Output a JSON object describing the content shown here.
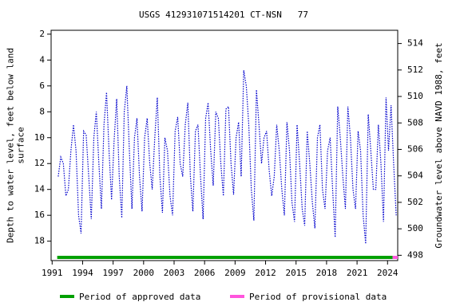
{
  "chart_data": {
    "type": "line",
    "title": "USGS 412931071514201 CT-NSN   77",
    "ylabel": "Depth to water level, feet below land\nsurface",
    "y2label": "Groundwater level above NAVD 1988, feet",
    "invert_y": true,
    "xlim": [
      1990.9,
      2025.0
    ],
    "xticks": [
      1991,
      1994,
      1997,
      2000,
      2003,
      2006,
      2009,
      2012,
      2015,
      2018,
      2021,
      2024
    ],
    "ylim": [
      1.7,
      19.5
    ],
    "yticks": [
      2,
      4,
      6,
      8,
      10,
      12,
      14,
      16,
      18
    ],
    "y2lim": [
      497.6,
      515.0
    ],
    "y2ticks": [
      498,
      500,
      502,
      504,
      506,
      508,
      510,
      512,
      514
    ],
    "series": [
      {
        "name": "Depth to water level",
        "color": "#0000cc",
        "x": [
          1991.6,
          1991.85,
          1992.1,
          1992.35,
          1992.6,
          1992.85,
          1993.1,
          1993.35,
          1993.6,
          1993.85,
          1994.1,
          1994.35,
          1994.6,
          1994.85,
          1995.1,
          1995.35,
          1995.6,
          1995.85,
          1996.1,
          1996.35,
          1996.6,
          1996.85,
          1997.1,
          1997.35,
          1997.6,
          1997.85,
          1998.1,
          1998.35,
          1998.6,
          1998.85,
          1999.1,
          1999.35,
          1999.6,
          1999.85,
          2000.1,
          2000.35,
          2000.6,
          2000.85,
          2001.1,
          2001.35,
          2001.6,
          2001.85,
          2002.1,
          2002.35,
          2002.6,
          2002.85,
          2003.1,
          2003.35,
          2003.6,
          2003.85,
          2004.1,
          2004.35,
          2004.6,
          2004.85,
          2005.1,
          2005.35,
          2005.6,
          2005.85,
          2006.1,
          2006.35,
          2006.6,
          2006.85,
          2007.1,
          2007.35,
          2007.6,
          2007.85,
          2008.1,
          2008.35,
          2008.6,
          2008.85,
          2009.1,
          2009.35,
          2009.6,
          2009.85,
          2010.1,
          2010.35,
          2010.6,
          2010.85,
          2011.1,
          2011.35,
          2011.6,
          2011.85,
          2012.1,
          2012.35,
          2012.6,
          2012.85,
          2013.1,
          2013.35,
          2013.6,
          2013.85,
          2014.1,
          2014.35,
          2014.6,
          2014.85,
          2015.1,
          2015.35,
          2015.6,
          2015.85,
          2016.1,
          2016.35,
          2016.6,
          2016.85,
          2017.1,
          2017.35,
          2017.6,
          2017.85,
          2018.1,
          2018.35,
          2018.6,
          2018.85,
          2019.1,
          2019.35,
          2019.6,
          2019.85,
          2020.1,
          2020.35,
          2020.6,
          2020.85,
          2021.1,
          2021.35,
          2021.6,
          2021.85,
          2022.1,
          2022.35,
          2022.6,
          2022.85,
          2023.1,
          2023.35,
          2023.6,
          2023.85,
          2024.1,
          2024.35,
          2024.6,
          2024.85
        ],
        "values": [
          13,
          11.5,
          12,
          14.5,
          14,
          11,
          9,
          11,
          16,
          17.4,
          9.5,
          9.8,
          13,
          16.3,
          10,
          8,
          12,
          15.5,
          9,
          6.5,
          11,
          14.8,
          10.2,
          7,
          13,
          16.2,
          8,
          6,
          11,
          15.5,
          10,
          8.5,
          13,
          15.7,
          10,
          8.5,
          12,
          14,
          10,
          6.9,
          13,
          15.8,
          10,
          11,
          14.5,
          16,
          9.5,
          8.4,
          12,
          13,
          9,
          7.3,
          13,
          15.7,
          9.5,
          9,
          13,
          16.3,
          8.5,
          7.3,
          11,
          13.7,
          8,
          8.5,
          12,
          14.5,
          7.8,
          7.6,
          12,
          14.4,
          10,
          8.8,
          13,
          4.8,
          6,
          9,
          14,
          16.4,
          6.3,
          9,
          12,
          10,
          9.5,
          12.5,
          14.5,
          13,
          9,
          11,
          14,
          16,
          8.8,
          11,
          15,
          16.5,
          9,
          12,
          15.5,
          16.8,
          9.5,
          12,
          15,
          17,
          10,
          9,
          14,
          15.5,
          11,
          10,
          14,
          17.7,
          7.6,
          10,
          13,
          15.5,
          7.6,
          10,
          14,
          15.5,
          9.5,
          11,
          16,
          18.2,
          8.2,
          11,
          14,
          14,
          9,
          12,
          16.5,
          6.9,
          11,
          7.5,
          12,
          16
        ]
      }
    ],
    "periods": [
      {
        "name": "Period of approved data",
        "color": "#00a000",
        "x": [
          1991.5,
          2024.5
        ]
      },
      {
        "name": "Period of provisional data",
        "color": "#ff55dd",
        "x": [
          2024.5,
          2025.0
        ]
      }
    ]
  }
}
